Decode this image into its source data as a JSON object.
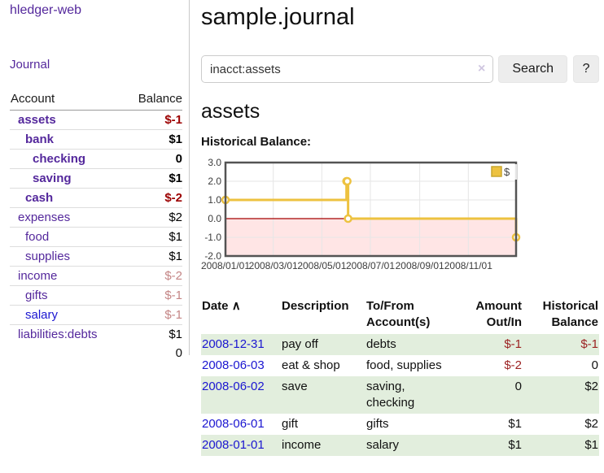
{
  "sidebar": {
    "app_title": "hledger-web",
    "journal_link": "Journal",
    "accounts": {
      "header_account": "Account",
      "header_balance": "Balance",
      "rows": [
        {
          "name": "assets",
          "indent": 1,
          "bold": true,
          "balance": "$-1",
          "balance_class": "neg",
          "link_class": "visited"
        },
        {
          "name": "bank",
          "indent": 2,
          "bold": true,
          "balance": "$1",
          "balance_class": "pos",
          "link_class": "visited"
        },
        {
          "name": "checking",
          "indent": 3,
          "bold": true,
          "balance": "0",
          "balance_class": "pos",
          "link_class": "visited"
        },
        {
          "name": "saving",
          "indent": 3,
          "bold": true,
          "balance": "$1",
          "balance_class": "pos",
          "link_class": "visited"
        },
        {
          "name": "cash",
          "indent": 2,
          "bold": true,
          "balance": "$-2",
          "balance_class": "neg",
          "link_class": "visited"
        },
        {
          "name": "expenses",
          "indent": 1,
          "bold": false,
          "balance": "$2",
          "balance_class": "pos",
          "link_class": "visited"
        },
        {
          "name": "food",
          "indent": 2,
          "bold": false,
          "balance": "$1",
          "balance_class": "pos",
          "link_class": "visited"
        },
        {
          "name": "supplies",
          "indent": 2,
          "bold": false,
          "balance": "$1",
          "balance_class": "pos",
          "link_class": "visited"
        },
        {
          "name": "income",
          "indent": 1,
          "bold": false,
          "balance": "$-2",
          "balance_class": "negfaded",
          "link_class": "visited"
        },
        {
          "name": "gifts",
          "indent": 2,
          "bold": false,
          "balance": "$-1",
          "balance_class": "negfaded",
          "link_class": "visited"
        },
        {
          "name": "salary",
          "indent": 2,
          "bold": false,
          "balance": "$-1",
          "balance_class": "negfaded",
          "link_class": "unvisited"
        },
        {
          "name": "liabilities:debts",
          "indent": 1,
          "bold": false,
          "balance": "$1",
          "balance_class": "pos",
          "link_class": "visited"
        }
      ],
      "total": "0"
    }
  },
  "main": {
    "title": "sample.journal",
    "search": {
      "value": "inacct:assets",
      "clear_icon": "×",
      "search_button": "Search",
      "help_button": "?"
    },
    "account_heading": "assets",
    "chart_title": "Historical Balance:"
  },
  "chart_data": {
    "type": "line",
    "style": "step",
    "title": "Historical Balance:",
    "series": [
      {
        "name": "$",
        "color": "#edc240",
        "points": [
          [
            "2008-01-01",
            1.0
          ],
          [
            "2008-06-01",
            2.0
          ],
          [
            "2008-06-02",
            2.0
          ],
          [
            "2008-06-03",
            0.0
          ],
          [
            "2008-12-31",
            -1.0
          ]
        ]
      }
    ],
    "xlim": [
      "2008-01-01",
      "2008-12-31"
    ],
    "ylim": [
      -2.0,
      3.0
    ],
    "x_ticks": [
      "2008/01/01",
      "2008/03/01",
      "2008/05/01",
      "2008/07/01",
      "2008/09/01",
      "2008/11/01"
    ],
    "y_ticks": [
      3.0,
      2.0,
      1.0,
      0.0,
      -1.0,
      -2.0
    ],
    "grid": true,
    "legend": {
      "label": "$",
      "position": "top-right"
    },
    "negative_region_color": "rgba(255,0,0,0.10)",
    "zero_line_color": "#a40000",
    "border_color": "#545454",
    "grid_color": "#e6e6e6"
  },
  "register": {
    "headers": {
      "date": "Date",
      "sort_icon": "∧",
      "description": "Description",
      "accounts": "To/From Account(s)",
      "amount": "Amount Out/In",
      "balance": "Historical Balance"
    },
    "rows": [
      {
        "date": "2008-12-31",
        "description": "pay off",
        "accounts": "debts",
        "amount": "$-1",
        "balance": "$-1",
        "amount_neg": true,
        "balance_neg": true
      },
      {
        "date": "2008-06-03",
        "description": "eat & shop",
        "accounts": "food, supplies",
        "amount": "$-2",
        "balance": "0",
        "amount_neg": true,
        "balance_neg": false
      },
      {
        "date": "2008-06-02",
        "description": "save",
        "accounts": "saving, checking",
        "amount": "0",
        "balance": "$2",
        "amount_neg": false,
        "balance_neg": false
      },
      {
        "date": "2008-06-01",
        "description": "gift",
        "accounts": "gifts",
        "amount": "$1",
        "balance": "$2",
        "amount_neg": false,
        "balance_neg": false
      },
      {
        "date": "2008-01-01",
        "description": "income",
        "accounts": "salary",
        "amount": "$1",
        "balance": "$1",
        "amount_neg": false,
        "balance_neg": false
      }
    ]
  }
}
